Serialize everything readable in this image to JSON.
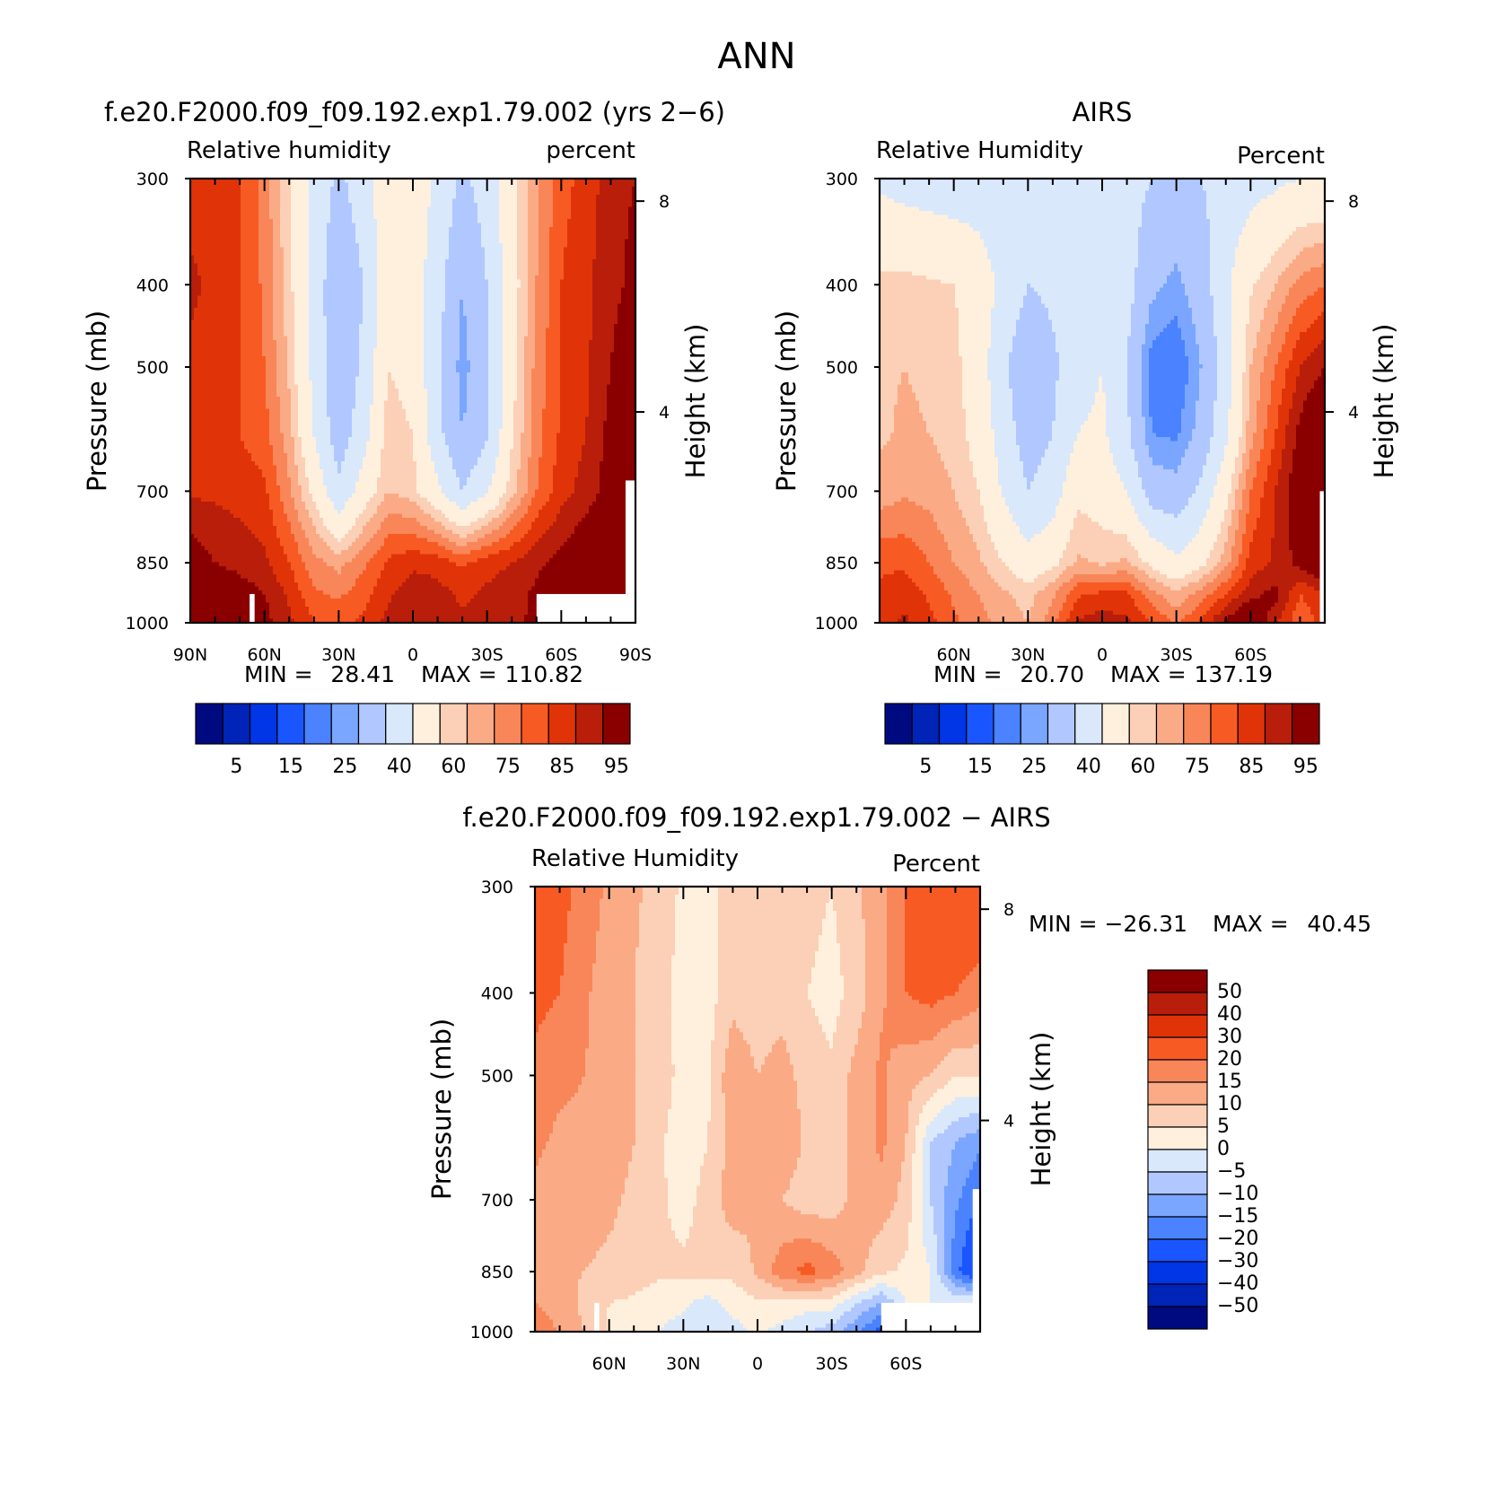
{
  "figure": {
    "main_title": "ANN"
  },
  "colors": {
    "abs_palette": [
      "#000a80",
      "#0024b8",
      "#0036e6",
      "#1a56ff",
      "#4a82ff",
      "#7aa6ff",
      "#b0c8ff",
      "#d9e8fb",
      "#fff0de",
      "#fcd0b6",
      "#fbaa86",
      "#f88658",
      "#f85a24",
      "#e03408",
      "#b81e0a",
      "#8a0000"
    ],
    "diff_palette": [
      "#000a80",
      "#0024b8",
      "#0036e6",
      "#1a56ff",
      "#4a82ff",
      "#7aa6ff",
      "#b0c8ff",
      "#d9e8fb",
      "#fff0de",
      "#fcd0b6",
      "#fbaa86",
      "#f88658",
      "#f85a24",
      "#e03408",
      "#b81e0a",
      "#8a0000"
    ]
  },
  "chart_data": [
    {
      "id": "model",
      "type": "heatmap",
      "title": "f.e20.F2000.f09_f09.192.exp1.79.002 (yrs 2−6)",
      "left_label": "Relative humidity",
      "right_label": "percent",
      "xlabel": "",
      "ylabel": "Pressure (mb)",
      "y2label": "Height (km)",
      "x_ticks": [
        "90N",
        "60N",
        "30N",
        "0",
        "30S",
        "60S",
        "90S"
      ],
      "y_ticks": [
        300,
        400,
        500,
        700,
        850,
        1000
      ],
      "y2_ticks": [
        8,
        4
      ],
      "min_label": "MIN =",
      "min_value": "28.41",
      "max_label": "MAX =",
      "max_value": "110.82",
      "colorbar_labels": [
        "5",
        "15",
        "25",
        "40",
        "60",
        "75",
        "85",
        "95"
      ],
      "levels": [
        5,
        10,
        15,
        20,
        25,
        30,
        40,
        50,
        60,
        65,
        70,
        75,
        80,
        85,
        90,
        95
      ],
      "lat_range": [
        90,
        -90
      ],
      "p_range": [
        300,
        1000
      ],
      "grid_lats": [
        90,
        80,
        70,
        60,
        50,
        40,
        30,
        20,
        10,
        0,
        -10,
        -20,
        -30,
        -40,
        -50,
        -60,
        -70,
        -80,
        -90
      ],
      "grid_p": [
        300,
        400,
        500,
        600,
        700,
        850,
        925,
        1000
      ],
      "grid_values": [
        [
          83,
          82,
          80,
          73,
          60,
          47,
          38,
          45,
          58,
          56,
          48,
          38,
          44,
          58,
          69,
          78,
          82,
          88,
          90
        ],
        [
          86,
          84,
          80,
          74,
          62,
          46,
          32,
          40,
          57,
          55,
          44,
          30,
          40,
          56,
          70,
          80,
          84,
          88,
          92
        ],
        [
          84,
          82,
          80,
          75,
          64,
          47,
          32,
          42,
          60,
          57,
          42,
          27,
          38,
          57,
          72,
          80,
          84,
          90,
          96
        ],
        [
          82,
          80,
          80,
          77,
          67,
          50,
          34,
          46,
          63,
          60,
          43,
          30,
          39,
          59,
          73,
          81,
          85,
          92,
          96
        ],
        [
          84,
          84,
          83,
          81,
          71,
          58,
          42,
          55,
          65,
          62,
          52,
          40,
          49,
          63,
          75,
          83,
          87,
          93,
          96
        ],
        [
          94,
          90,
          88,
          86,
          80,
          72,
          68,
          74,
          81,
          84,
          83,
          79,
          83,
          85,
          89,
          92,
          96,
          100,
          97
        ],
        [
          100,
          97,
          93,
          90,
          84,
          76,
          74,
          78,
          84,
          88,
          87,
          84,
          86,
          88,
          91,
          94,
          97,
          102,
          99
        ],
        [
          102,
          99,
          93,
          92,
          86,
          80,
          79,
          81,
          87,
          90,
          88,
          86,
          87,
          89,
          91,
          94,
          97,
          104,
          104
        ]
      ],
      "missing_regions": [
        {
          "lat": [
            -50,
            -90
          ],
          "p": [
            925,
            1000
          ]
        },
        {
          "lat": [
            -86,
            -90
          ],
          "p": [
            680,
            925
          ]
        },
        {
          "lat": [
            66,
            64
          ],
          "p": [
            925,
            1000
          ]
        }
      ]
    },
    {
      "id": "obs",
      "type": "heatmap",
      "title": "AIRS",
      "left_label": "Relative Humidity",
      "right_label": "Percent",
      "xlabel": "",
      "ylabel": "Pressure (mb)",
      "y2label": "Height (km)",
      "x_ticks": [
        "60N",
        "30N",
        "0",
        "30S",
        "60S"
      ],
      "y_ticks": [
        300,
        400,
        500,
        700,
        850,
        1000
      ],
      "y2_ticks": [
        8,
        4
      ],
      "min_label": "MIN =",
      "min_value": "20.70",
      "max_label": "MAX =",
      "max_value": "137.19",
      "colorbar_labels": [
        "5",
        "15",
        "25",
        "40",
        "60",
        "75",
        "85",
        "95"
      ],
      "levels": [
        5,
        10,
        15,
        20,
        25,
        30,
        40,
        50,
        60,
        65,
        70,
        75,
        80,
        85,
        90,
        95
      ],
      "lat_range": [
        90,
        -90
      ],
      "p_range": [
        300,
        1000
      ],
      "grid_lats": [
        90,
        80,
        70,
        60,
        50,
        40,
        30,
        20,
        10,
        0,
        -10,
        -20,
        -30,
        -40,
        -50,
        -60,
        -70,
        -80,
        -90
      ],
      "grid_p": [
        300,
        400,
        500,
        600,
        700,
        850,
        925,
        1000
      ],
      "grid_values": [
        [
          48,
          46,
          45,
          44,
          44,
          42,
          40,
          42,
          45,
          47,
          44,
          40,
          38,
          40,
          43,
          46,
          48,
          50,
          50
        ],
        [
          62,
          62,
          61,
          60,
          56,
          47,
          40,
          42,
          46,
          48,
          44,
          32,
          28,
          35,
          48,
          59,
          65,
          72,
          75
        ],
        [
          64,
          65,
          64,
          62,
          55,
          42,
          32,
          38,
          46,
          50,
          40,
          22,
          20,
          30,
          45,
          65,
          75,
          85,
          90
        ],
        [
          64,
          66,
          65,
          63,
          57,
          45,
          35,
          40,
          50,
          52,
          42,
          25,
          24,
          33,
          48,
          68,
          80,
          92,
          100
        ],
        [
          67,
          69,
          68,
          65,
          60,
          49,
          40,
          45,
          58,
          56,
          50,
          35,
          33,
          42,
          57,
          75,
          85,
          95,
          100
        ],
        [
          79,
          79,
          75,
          70,
          66,
          60,
          54,
          58,
          66,
          64,
          66,
          58,
          52,
          58,
          68,
          82,
          86,
          92,
          98
        ],
        [
          81,
          83,
          79,
          74,
          70,
          66,
          63,
          69,
          79,
          81,
          81,
          72,
          66,
          72,
          80,
          88,
          92,
          80,
          85
        ],
        [
          82,
          86,
          82,
          76,
          72,
          68,
          65,
          73,
          86,
          88,
          86,
          80,
          74,
          81,
          92,
          99,
          86,
          76,
          82
        ]
      ],
      "missing_regions": [
        {
          "lat": [
            -88,
            -90
          ],
          "p": [
            700,
            1000
          ]
        }
      ]
    },
    {
      "id": "diff",
      "type": "heatmap",
      "title": "f.e20.F2000.f09_f09.192.exp1.79.002 − AIRS",
      "left_label": "Relative Humidity",
      "right_label": "Percent",
      "xlabel": "",
      "ylabel": "Pressure (mb)",
      "y2label": "Height (km)",
      "x_ticks": [
        "60N",
        "30N",
        "0",
        "30S",
        "60S"
      ],
      "y_ticks": [
        300,
        400,
        500,
        700,
        850,
        1000
      ],
      "y2_ticks": [
        8,
        4
      ],
      "min_label": "MIN =",
      "min_value": "−26.31",
      "max_label": "MAX =",
      "max_value": "40.45",
      "colorbar_labels": [
        "50",
        "40",
        "30",
        "20",
        "15",
        "10",
        "5",
        "0",
        "−5",
        "−10",
        "−15",
        "−20",
        "−30",
        "−40",
        "−50"
      ],
      "levels": [
        -50,
        -40,
        -30,
        -20,
        -15,
        -10,
        -5,
        0,
        5,
        10,
        15,
        20,
        30,
        40,
        50
      ],
      "lat_range": [
        90,
        -90
      ],
      "p_range": [
        300,
        1000
      ],
      "grid_lats": [
        90,
        80,
        70,
        60,
        50,
        40,
        30,
        20,
        10,
        0,
        -10,
        -20,
        -30,
        -40,
        -50,
        -60,
        -70,
        -80,
        -90
      ],
      "grid_p": [
        300,
        400,
        500,
        600,
        700,
        850,
        925,
        1000
      ],
      "grid_values": [
        [
          24,
          22,
          18,
          14,
          11,
          8,
          4,
          4,
          7,
          7,
          7,
          7,
          5,
          9,
          14,
          20,
          24,
          26,
          28
        ],
        [
          22,
          20,
          16,
          12,
          10,
          7,
          3,
          3,
          8,
          7,
          8,
          5,
          3,
          7,
          14,
          20,
          22,
          20,
          17
        ],
        [
          18,
          16,
          15,
          12,
          10,
          8,
          3,
          4,
          14,
          10,
          12,
          8,
          6,
          12,
          16,
          12,
          10,
          5,
          6
        ],
        [
          16,
          14,
          14,
          12,
          10,
          6,
          2,
          5,
          12,
          10,
          14,
          9,
          7,
          12,
          16,
          10,
          -5,
          -10,
          -14
        ],
        [
          14,
          12,
          12,
          11,
          9,
          6,
          3,
          7,
          13,
          10,
          10,
          7,
          7,
          12,
          13,
          8,
          -5,
          -14,
          -20
        ],
        [
          13,
          11,
          10,
          9,
          8,
          6,
          6,
          7,
          6,
          11,
          18,
          22,
          18,
          12,
          6,
          4,
          0,
          -18,
          -30
        ],
        [
          15,
          12,
          9,
          5,
          4,
          2,
          1,
          -2,
          2,
          4,
          4,
          2,
          3,
          -5,
          -10,
          0,
          0,
          0,
          0
        ],
        [
          20,
          14,
          10,
          4,
          3,
          0,
          -2,
          -3,
          -2,
          1,
          -2,
          -4,
          -8,
          -14,
          -22,
          0,
          0,
          0,
          0
        ]
      ],
      "missing_regions": [
        {
          "lat": [
            -50,
            -90
          ],
          "p": [
            925,
            1000
          ]
        },
        {
          "lat": [
            -87,
            -90
          ],
          "p": [
            680,
            925
          ]
        },
        {
          "lat": [
            66,
            64
          ],
          "p": [
            925,
            1000
          ]
        }
      ]
    }
  ]
}
